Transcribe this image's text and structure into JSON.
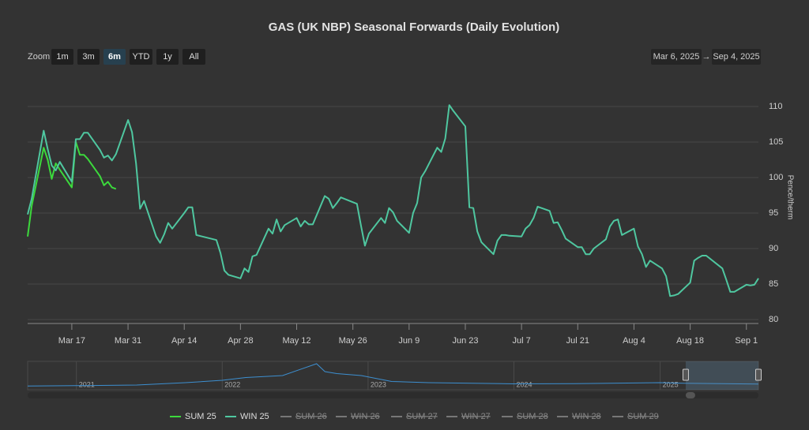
{
  "chart_data": {
    "type": "line",
    "title": "GAS (UK NBP) Seasonal Forwards (Daily Evolution)",
    "y_axis_title": "Pence/therm",
    "range_selector": {
      "label": "Zoom",
      "buttons": [
        "1m",
        "3m",
        "6m",
        "YTD",
        "1y",
        "All"
      ],
      "selected": "6m"
    },
    "date_range": {
      "from": "Mar 6, 2025",
      "separator": "→",
      "to": "Sep 4, 2025"
    },
    "xlim": [
      "2025-03-06",
      "2025-09-04"
    ],
    "xticks": [
      {
        "value": "2025-03-17",
        "label": "Mar 17"
      },
      {
        "value": "2025-03-31",
        "label": "Mar 31"
      },
      {
        "value": "2025-04-14",
        "label": "Apr 14"
      },
      {
        "value": "2025-04-28",
        "label": "Apr 28"
      },
      {
        "value": "2025-05-12",
        "label": "May 12"
      },
      {
        "value": "2025-05-26",
        "label": "May 26"
      },
      {
        "value": "2025-06-09",
        "label": "Jun 9"
      },
      {
        "value": "2025-06-23",
        "label": "Jun 23"
      },
      {
        "value": "2025-07-07",
        "label": "Jul 7"
      },
      {
        "value": "2025-07-21",
        "label": "Jul 21"
      },
      {
        "value": "2025-08-04",
        "label": "Aug 4"
      },
      {
        "value": "2025-08-18",
        "label": "Aug 18"
      },
      {
        "value": "2025-09-01",
        "label": "Sep 1"
      }
    ],
    "ylim": [
      80,
      115
    ],
    "yticks": [
      80,
      85,
      90,
      95,
      100,
      105,
      110
    ],
    "grid": true,
    "x": [
      "2025-03-06",
      "2025-03-07",
      "2025-03-10",
      "2025-03-11",
      "2025-03-12",
      "2025-03-13",
      "2025-03-14",
      "2025-03-17",
      "2025-03-18",
      "2025-03-19",
      "2025-03-20",
      "2025-03-21",
      "2025-03-24",
      "2025-03-25",
      "2025-03-26",
      "2025-03-27",
      "2025-03-28",
      "2025-03-31",
      "2025-04-01",
      "2025-04-02",
      "2025-04-03",
      "2025-04-04",
      "2025-04-07",
      "2025-04-08",
      "2025-04-09",
      "2025-04-10",
      "2025-04-11",
      "2025-04-14",
      "2025-04-15",
      "2025-04-16",
      "2025-04-17",
      "2025-04-22",
      "2025-04-23",
      "2025-04-24",
      "2025-04-25",
      "2025-04-28",
      "2025-04-29",
      "2025-04-30",
      "2025-05-01",
      "2025-05-02",
      "2025-05-05",
      "2025-05-06",
      "2025-05-07",
      "2025-05-08",
      "2025-05-09",
      "2025-05-12",
      "2025-05-13",
      "2025-05-14",
      "2025-05-15",
      "2025-05-16",
      "2025-05-19",
      "2025-05-20",
      "2025-05-21",
      "2025-05-22",
      "2025-05-23",
      "2025-05-27",
      "2025-05-28",
      "2025-05-29",
      "2025-05-30",
      "2025-06-02",
      "2025-06-03",
      "2025-06-04",
      "2025-06-05",
      "2025-06-06",
      "2025-06-09",
      "2025-06-10",
      "2025-06-11",
      "2025-06-12",
      "2025-06-13",
      "2025-06-16",
      "2025-06-17",
      "2025-06-18",
      "2025-06-19",
      "2025-06-20",
      "2025-06-23",
      "2025-06-24",
      "2025-06-25",
      "2025-06-26",
      "2025-06-27",
      "2025-06-30",
      "2025-07-01",
      "2025-07-02",
      "2025-07-03",
      "2025-07-04",
      "2025-07-07",
      "2025-07-08",
      "2025-07-09",
      "2025-07-10",
      "2025-07-11",
      "2025-07-14",
      "2025-07-15",
      "2025-07-16",
      "2025-07-17",
      "2025-07-18",
      "2025-07-21",
      "2025-07-22",
      "2025-07-23",
      "2025-07-24",
      "2025-07-25",
      "2025-07-28",
      "2025-07-29",
      "2025-07-30",
      "2025-07-31",
      "2025-08-01",
      "2025-08-04",
      "2025-08-05",
      "2025-08-06",
      "2025-08-07",
      "2025-08-08",
      "2025-08-11",
      "2025-08-12",
      "2025-08-13",
      "2025-08-14",
      "2025-08-15",
      "2025-08-18",
      "2025-08-19",
      "2025-08-20",
      "2025-08-21",
      "2025-08-22",
      "2025-08-26",
      "2025-08-27",
      "2025-08-28",
      "2025-08-29",
      "2025-09-01",
      "2025-09-02",
      "2025-09-03",
      "2025-09-04"
    ],
    "series": [
      {
        "name": "SUM 25",
        "color": "#3cd93c",
        "visible": true,
        "values": [
          91.7,
          96,
          104.2,
          102.5,
          99.8,
          102,
          101.1,
          98.6,
          105,
          103.2,
          103.2,
          102.6,
          100.2,
          98.9,
          99.4,
          98.6,
          98.4,
          null,
          null,
          null,
          null,
          null,
          null,
          null,
          null,
          null,
          null,
          null,
          null,
          null,
          null,
          null,
          null,
          null,
          null,
          null,
          null,
          null,
          null,
          null,
          null,
          null,
          null,
          null,
          null,
          null,
          null,
          null,
          null,
          null,
          null,
          null,
          null,
          null,
          null,
          null,
          null,
          null,
          null,
          null,
          null,
          null,
          null,
          null,
          null,
          null,
          null,
          null,
          null,
          null,
          null,
          null,
          null,
          null,
          null,
          null,
          null,
          null,
          null,
          null,
          null,
          null,
          null,
          null,
          null,
          null,
          null,
          null,
          null,
          null,
          null,
          null,
          null,
          null,
          null,
          null,
          null,
          null,
          null,
          null,
          null,
          null,
          null,
          null,
          null,
          null,
          null,
          null,
          null,
          null,
          null,
          null,
          null,
          null,
          null,
          null,
          null,
          null,
          null,
          null,
          null,
          null,
          null,
          null,
          null,
          null,
          null
        ]
      },
      {
        "name": "WIN 25",
        "color": "#4fc7a0",
        "visible": true,
        "values": [
          94.8,
          97,
          106.6,
          104,
          101.7,
          101,
          102.2,
          99.4,
          105.4,
          105.4,
          106.3,
          106.3,
          103.9,
          102.8,
          103.1,
          102.4,
          103.3,
          108.1,
          106.4,
          102,
          95.6,
          96.7,
          91.7,
          90.8,
          92,
          93.6,
          92.8,
          95,
          95.8,
          95.8,
          91.9,
          91.2,
          89.4,
          86.9,
          86.3,
          85.8,
          87.2,
          86.7,
          88.9,
          89.1,
          92.8,
          92.1,
          94.1,
          92.4,
          93.3,
          94.3,
          93.1,
          93.9,
          93.4,
          93.4,
          97.4,
          97,
          95.7,
          96.4,
          97.2,
          96.3,
          93.3,
          90.4,
          92.1,
          94.3,
          93.6,
          95.7,
          95.1,
          93.9,
          92.2,
          95,
          96.4,
          100,
          100.9,
          104.2,
          103.6,
          105.5,
          110.2,
          109.4,
          107.2,
          95.8,
          95.7,
          92.4,
          90.9,
          89.2,
          91.1,
          91.9,
          91.9,
          91.8,
          91.7,
          92.8,
          93.3,
          94.3,
          95.9,
          95.3,
          93.6,
          93.7,
          92.6,
          91.4,
          90.2,
          90.2,
          89.2,
          89.2,
          90,
          91.3,
          93.1,
          93.9,
          94.1,
          91.9,
          92.8,
          90.3,
          89.2,
          87.4,
          88.3,
          87.2,
          86.1,
          83.3,
          83.4,
          83.6,
          85.2,
          88.3,
          88.7,
          89,
          89,
          87.2,
          85.6,
          83.9,
          83.9,
          84.9,
          84.8,
          84.9,
          85.8
        ]
      },
      {
        "name": "SUM 26",
        "visible": false
      },
      {
        "name": "WIN 26",
        "visible": false
      },
      {
        "name": "SUM 27",
        "visible": false
      },
      {
        "name": "WIN 27",
        "visible": false
      },
      {
        "name": "SUM 28",
        "visible": false
      },
      {
        "name": "WIN 28",
        "visible": false
      },
      {
        "name": "SUM 29",
        "visible": false
      }
    ],
    "navigator": {
      "color": "#3d8fd0",
      "xlim": [
        "2020-09-01",
        "2025-09-04"
      ],
      "ylim": [
        0,
        600
      ],
      "xticks": [
        {
          "value": "2021-01-01",
          "label": "2021"
        },
        {
          "value": "2022-01-01",
          "label": "2022"
        },
        {
          "value": "2023-01-01",
          "label": "2023"
        },
        {
          "value": "2024-01-01",
          "label": "2024"
        },
        {
          "value": "2025-01-01",
          "label": "2025"
        }
      ],
      "x": [
        "2020-09-01",
        "2021-01-01",
        "2021-06-01",
        "2021-10-01",
        "2022-01-01",
        "2022-03-01",
        "2022-06-01",
        "2022-08-25",
        "2022-09-15",
        "2022-10-15",
        "2022-12-15",
        "2023-03-01",
        "2023-06-01",
        "2024-01-01",
        "2024-06-01",
        "2025-01-01",
        "2025-03-01",
        "2025-09-04"
      ],
      "values": [
        35,
        45,
        60,
        120,
        180,
        250,
        300,
        600,
        400,
        350,
        300,
        150,
        120,
        90,
        95,
        120,
        105,
        86
      ]
    }
  }
}
